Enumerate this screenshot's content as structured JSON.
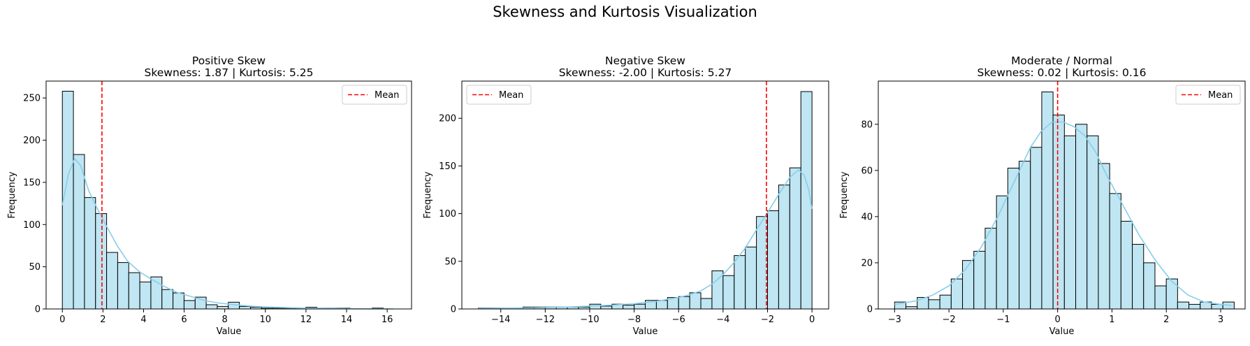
{
  "suptitle": "Skewness and Kurtosis Visualization",
  "colors": {
    "bar_fill": "#bfe6f2",
    "bar_edge": "#000000",
    "kde": "#87ceeb",
    "mean_line": "#ff0000"
  },
  "chart_data": [
    {
      "type": "histogram",
      "title": "Positive Skew",
      "subtitle": "Skewness: 1.87 | Kurtosis: 5.25",
      "xlabel": "Value",
      "ylabel": "Frequency",
      "xlim": [
        -0.8,
        17.2
      ],
      "ylim": [
        0,
        270
      ],
      "xticks": [
        0,
        2,
        4,
        6,
        8,
        10,
        12,
        14,
        16
      ],
      "xtick_labels": [
        "0",
        "2",
        "4",
        "6",
        "8",
        "10",
        "12",
        "14",
        "16"
      ],
      "yticks": [
        0,
        50,
        100,
        150,
        200,
        250
      ],
      "ytick_labels": [
        "0",
        "50",
        "100",
        "150",
        "200",
        "250"
      ],
      "bin_start": 0,
      "bin_width": 0.545,
      "counts": [
        258,
        183,
        132,
        113,
        67,
        55,
        43,
        32,
        38,
        23,
        19,
        10,
        14,
        5,
        3,
        8,
        3,
        2,
        1,
        1,
        1,
        1,
        2,
        1,
        1,
        1,
        0,
        0,
        1,
        0
      ],
      "mean": 1.95,
      "kde": [
        [
          0,
          123
        ],
        [
          0.3,
          160
        ],
        [
          0.6,
          178
        ],
        [
          0.9,
          170
        ],
        [
          1.3,
          140
        ],
        [
          1.7,
          120
        ],
        [
          2.2,
          97
        ],
        [
          2.7,
          75
        ],
        [
          3.2,
          57
        ],
        [
          3.8,
          44
        ],
        [
          4.4,
          35
        ],
        [
          5.0,
          27
        ],
        [
          5.6,
          20
        ],
        [
          6.3,
          15
        ],
        [
          7.0,
          10
        ],
        [
          7.7,
          7
        ],
        [
          8.5,
          5
        ],
        [
          9.5,
          3
        ],
        [
          10.5,
          2
        ],
        [
          12,
          1
        ],
        [
          14,
          0.3
        ],
        [
          16.3,
          0
        ]
      ],
      "legend": {
        "label": "Mean",
        "position": "upper right"
      }
    },
    {
      "type": "histogram",
      "title": "Negative Skew",
      "subtitle": "Skewness: -2.00 | Kurtosis: 5.27",
      "xlabel": "Value",
      "ylabel": "Frequency",
      "xlim": [
        -15.75,
        0.75
      ],
      "ylim": [
        0,
        239
      ],
      "xticks": [
        -14,
        -12,
        -10,
        -8,
        -6,
        -4,
        -2,
        0
      ],
      "xtick_labels": [
        "−14",
        "−12",
        "−10",
        "−8",
        "−6",
        "−4",
        "−2",
        "0"
      ],
      "yticks": [
        0,
        50,
        100,
        150,
        200
      ],
      "ytick_labels": [
        "0",
        "50",
        "100",
        "150",
        "200"
      ],
      "bin_start": -15,
      "bin_width": 0.5,
      "counts": [
        1,
        1,
        1,
        1,
        2,
        2,
        2,
        2,
        2,
        2,
        5,
        3,
        5,
        4,
        5,
        9,
        9,
        12,
        13,
        17,
        11,
        40,
        35,
        56,
        65,
        97,
        103,
        130,
        148,
        228
      ],
      "mean": -2.05,
      "kde": [
        [
          -15,
          0.5
        ],
        [
          -13,
          1
        ],
        [
          -11,
          2
        ],
        [
          -10,
          3
        ],
        [
          -9,
          4
        ],
        [
          -8,
          5.5
        ],
        [
          -7,
          8
        ],
        [
          -6,
          12
        ],
        [
          -5.5,
          15
        ],
        [
          -5,
          19
        ],
        [
          -4.5,
          26
        ],
        [
          -4,
          36
        ],
        [
          -3.5,
          49
        ],
        [
          -3,
          64
        ],
        [
          -2.5,
          83
        ],
        [
          -2,
          101
        ],
        [
          -1.5,
          120
        ],
        [
          -1,
          138
        ],
        [
          -0.6,
          146
        ],
        [
          -0.35,
          140
        ],
        [
          -0.15,
          125
        ],
        [
          0,
          105
        ]
      ],
      "legend": {
        "label": "Mean",
        "position": "upper left"
      }
    },
    {
      "type": "histogram",
      "title": "Moderate / Normal",
      "subtitle": "Skewness: 0.02 | Kurtosis: 0.16",
      "xlabel": "Value",
      "ylabel": "Frequency",
      "xlim": [
        -3.3,
        3.45
      ],
      "ylim": [
        0,
        98.7
      ],
      "xticks": [
        -3,
        -2,
        -1,
        0,
        1,
        2,
        3
      ],
      "xtick_labels": [
        "−3",
        "−2",
        "−1",
        "0",
        "1",
        "2",
        "3"
      ],
      "yticks": [
        0,
        20,
        40,
        60,
        80
      ],
      "ytick_labels": [
        "0",
        "20",
        "40",
        "60",
        "80"
      ],
      "bin_start": -3.0,
      "bin_width": 0.2083,
      "counts": [
        3,
        1,
        5,
        4,
        6,
        13,
        21,
        25,
        35,
        49,
        61,
        64,
        70,
        94,
        84,
        75,
        80,
        75,
        63,
        50,
        38,
        28,
        20,
        10,
        13,
        3,
        2,
        3,
        2,
        3
      ],
      "mean": 0.0,
      "kde": [
        [
          -3,
          2
        ],
        [
          -2.6,
          3.5
        ],
        [
          -2.3,
          6
        ],
        [
          -2,
          10
        ],
        [
          -1.7,
          17
        ],
        [
          -1.4,
          27
        ],
        [
          -1.1,
          40
        ],
        [
          -0.8,
          55
        ],
        [
          -0.5,
          70
        ],
        [
          -0.3,
          77
        ],
        [
          -0.1,
          81
        ],
        [
          0.1,
          81
        ],
        [
          0.3,
          79
        ],
        [
          0.5,
          75
        ],
        [
          0.7,
          68
        ],
        [
          0.9,
          58
        ],
        [
          1.2,
          45
        ],
        [
          1.5,
          32
        ],
        [
          1.8,
          21
        ],
        [
          2.1,
          12
        ],
        [
          2.4,
          6
        ],
        [
          2.7,
          3
        ],
        [
          3.0,
          2
        ],
        [
          3.2,
          1.5
        ]
      ],
      "legend": {
        "label": "Mean",
        "position": "upper right"
      }
    }
  ]
}
